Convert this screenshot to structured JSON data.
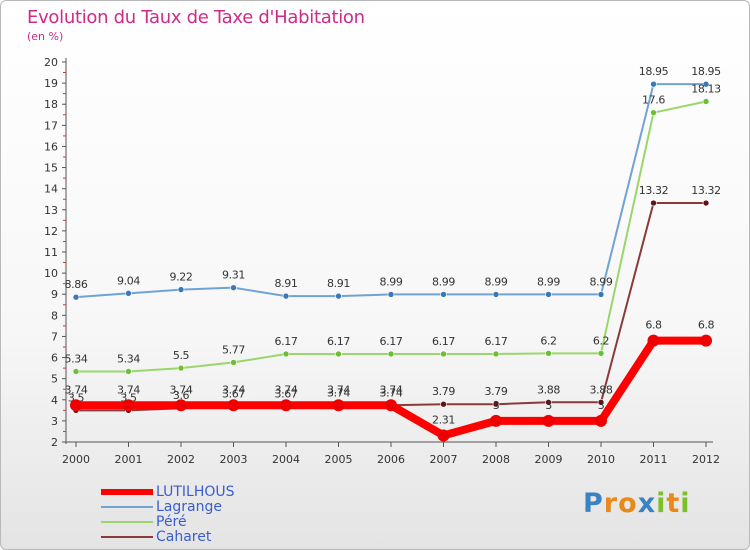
{
  "title": "Evolution du Taux de Taxe d'Habitation",
  "subtitle": "(en %)",
  "brand": {
    "letters": [
      "P",
      "r",
      "o",
      "x",
      "i",
      "t",
      "i"
    ],
    "colors": [
      "#3b82c4",
      "#e88a1a",
      "#e88a1a",
      "#3b82c4",
      "#7cbf2a",
      "#e88a1a",
      "#7cbf2a"
    ]
  },
  "chart_data": {
    "type": "line",
    "title": "Evolution du Taux de Taxe d'Habitation",
    "ylabel": "(en %)",
    "xlabel": "",
    "x": [
      "2000",
      "2001",
      "2002",
      "2003",
      "2004",
      "2005",
      "2006",
      "2007",
      "2008",
      "2009",
      "2010",
      "2011",
      "2012"
    ],
    "ylim": [
      2,
      20
    ],
    "yticks": [
      "2",
      "3",
      "4",
      "5",
      "6",
      "7",
      "8",
      "9",
      "10",
      "11",
      "12",
      "13",
      "14",
      "15",
      "16",
      "17",
      "18",
      "19",
      "20"
    ],
    "grid": false,
    "legend_position": "bottom-left",
    "series": [
      {
        "name": "Lagrange",
        "color": "#6fa3d4",
        "marker": "#3c78b8",
        "values": [
          8.86,
          9.04,
          9.22,
          9.31,
          8.91,
          8.91,
          8.99,
          8.99,
          8.99,
          8.99,
          8.99,
          18.95,
          18.95
        ],
        "labels": [
          "8.86",
          "9.04",
          "9.22",
          "9.31",
          "8.91",
          "8.91",
          "8.99",
          "8.99",
          "8.99",
          "8.99",
          "8.99",
          "18.95",
          "18.95"
        ]
      },
      {
        "name": "Péré",
        "color": "#9ad66a",
        "marker": "#6cbf34",
        "values": [
          5.34,
          5.34,
          5.5,
          5.77,
          6.17,
          6.17,
          6.17,
          6.17,
          6.17,
          6.2,
          6.2,
          17.6,
          18.13
        ],
        "labels": [
          "5.34",
          "5.34",
          "5.5",
          "5.77",
          "6.17",
          "6.17",
          "6.17",
          "6.17",
          "6.17",
          "6.2",
          "6.2",
          "17.6",
          "18.13"
        ]
      },
      {
        "name": "Caharet",
        "color": "#8a3a3a",
        "marker": "#5c1414",
        "values": [
          3.5,
          3.5,
          3.6,
          3.67,
          3.67,
          3.74,
          3.74,
          3.79,
          3.79,
          3.88,
          3.88,
          13.32,
          13.32
        ],
        "labels": [
          "3.5",
          "3.5",
          "3.6",
          "3.67",
          "3.67",
          "3.74",
          "3.74",
          "3.79",
          "3.79",
          "3.88",
          "3.88",
          "13.32",
          "13.32"
        ]
      },
      {
        "name": "LUTILHOUS",
        "color": "#ff0000",
        "marker": "#ee0000",
        "values": [
          3.74,
          3.74,
          3.74,
          3.74,
          3.74,
          3.74,
          3.74,
          2.31,
          3,
          3,
          3,
          6.8,
          6.8
        ],
        "labels": [
          "3.74",
          "3.74",
          "3.74",
          "3.74",
          "3.74",
          "3.74",
          "3.74",
          "2.31",
          "3",
          "3",
          "3",
          "6.8",
          "6.8"
        ]
      }
    ]
  },
  "legend": [
    {
      "name": "LUTILHOUS",
      "color": "#ff0000",
      "thickness": 6
    },
    {
      "name": "Lagrange",
      "color": "#6fa3d4",
      "thickness": 2
    },
    {
      "name": "Péré",
      "color": "#9ad66a",
      "thickness": 2
    },
    {
      "name": "Caharet",
      "color": "#8a3a3a",
      "thickness": 2
    }
  ]
}
